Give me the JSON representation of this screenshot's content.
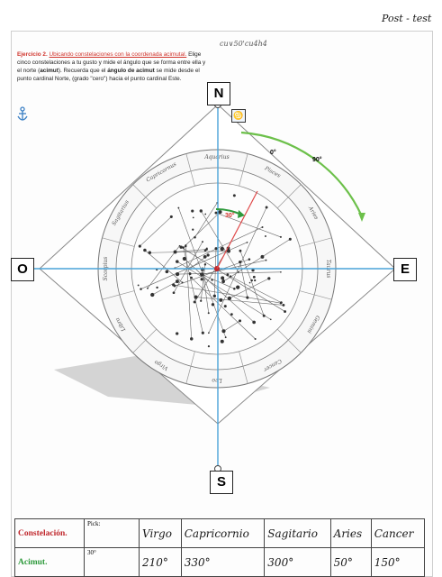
{
  "page": {
    "post_test": "Post - test",
    "header_code": "cu∨50'cu4h4"
  },
  "exercise": {
    "title": "Ejercicio 2.",
    "intro_underlined": "Ubicando constelaciones con la coordenada acimutal.",
    "p1": " Elige cinco constelaciones a tu gusto y mide el ángulo que se forma entre ella y el norte (",
    "p1_bold": "acimut",
    "p2": "). Recuerda que el ",
    "p2_bold": "ángulo de acimut",
    "p3": " se mide desde el punto cardinal Norte, (grado \"cero\") hacia el punto cardinal Este."
  },
  "cardinals": {
    "north": "N",
    "east": "E",
    "south": "S",
    "west": "O"
  },
  "angles": {
    "zero": "0°",
    "ninety": "90°",
    "thirty": "30°"
  },
  "small_symbol": "♋",
  "wheel_labels": [
    "Sagitarius",
    "Capricornus",
    "Aquarius",
    "Pisces",
    "Aries",
    "Taurus",
    "Gemini",
    "Cancer",
    "Leo",
    "Virgo",
    "Libra",
    "Scorpius"
  ],
  "table": {
    "row1_label": "Constelación.",
    "row2_label": "Acimut.",
    "pick_header": "Pick:",
    "pick_value": "30°",
    "constellations": [
      "Virgo",
      "Capricornio",
      "Sagitario",
      "Aries",
      "Cancer"
    ],
    "azimuths": [
      "210°",
      "330°",
      "300°",
      "50°",
      "150°"
    ]
  },
  "colors": {
    "label_red": "#c0282d",
    "label_green": "#2e9a3c",
    "axis_blue": "#4aa3d8",
    "arc_green": "#6cc04a"
  }
}
